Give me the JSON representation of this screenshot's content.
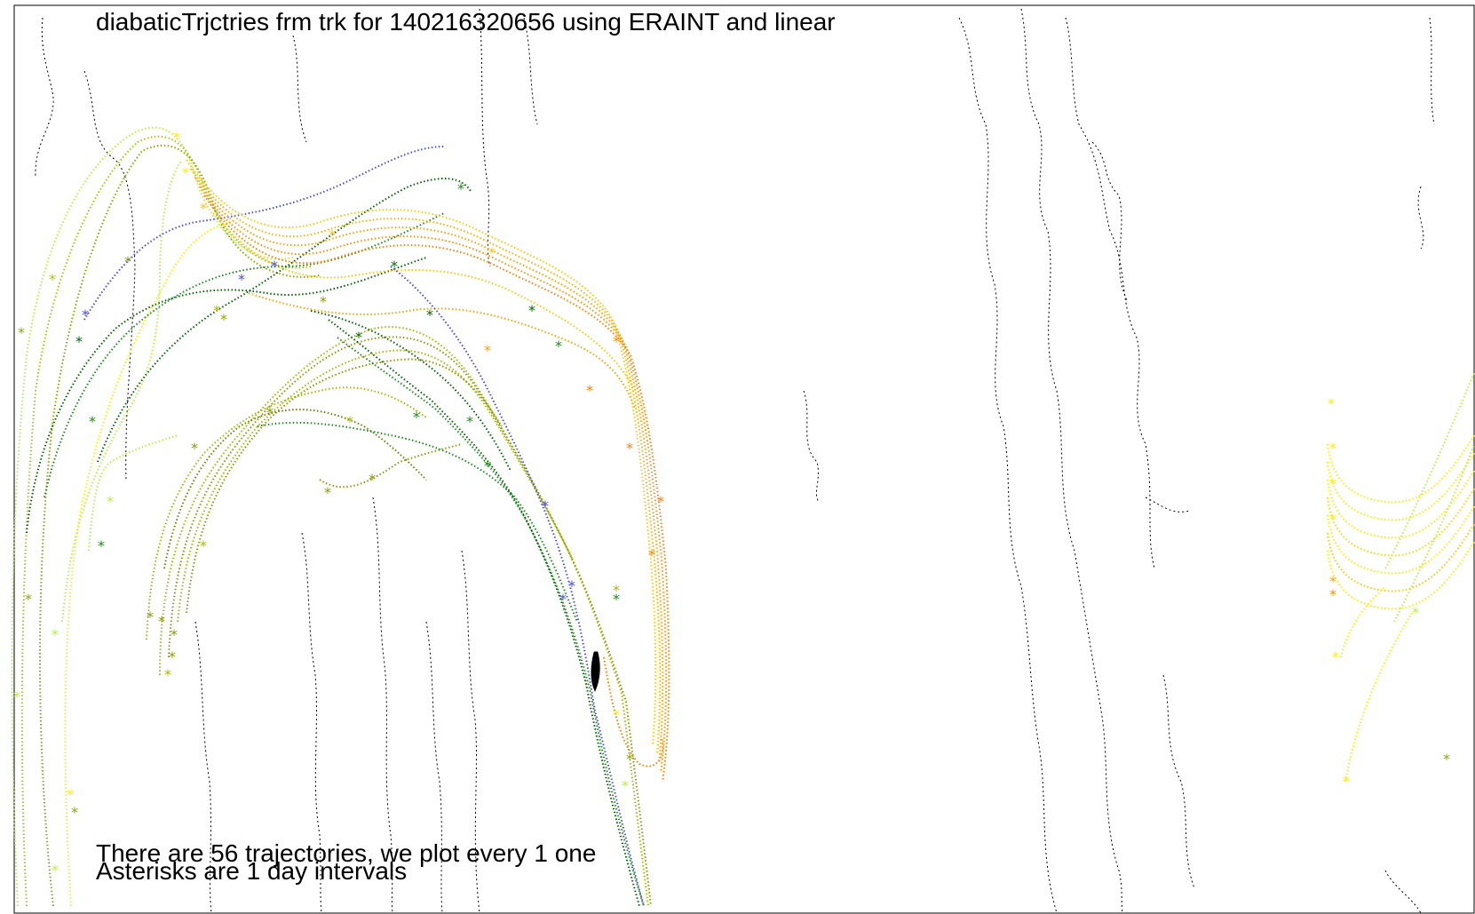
{
  "title": "diabaticTrjctries frm trk for 140216320656 using ERAINT and linear",
  "note_line1": "There are 56 trajectories, we plot every 1 one",
  "note_line2": "Asterisks are 1 day intervals",
  "colors": {
    "orange": "#ff7f00",
    "yellow_orange": "#ffc800",
    "yellow": "#ffee00",
    "light_green": "#b8f040",
    "olive": "#a8b800",
    "dark_olive": "#8a9a00",
    "green": "#1a8c1a",
    "dark_green": "#006400",
    "blue": "#4a4af0",
    "black": "#000000"
  }
}
